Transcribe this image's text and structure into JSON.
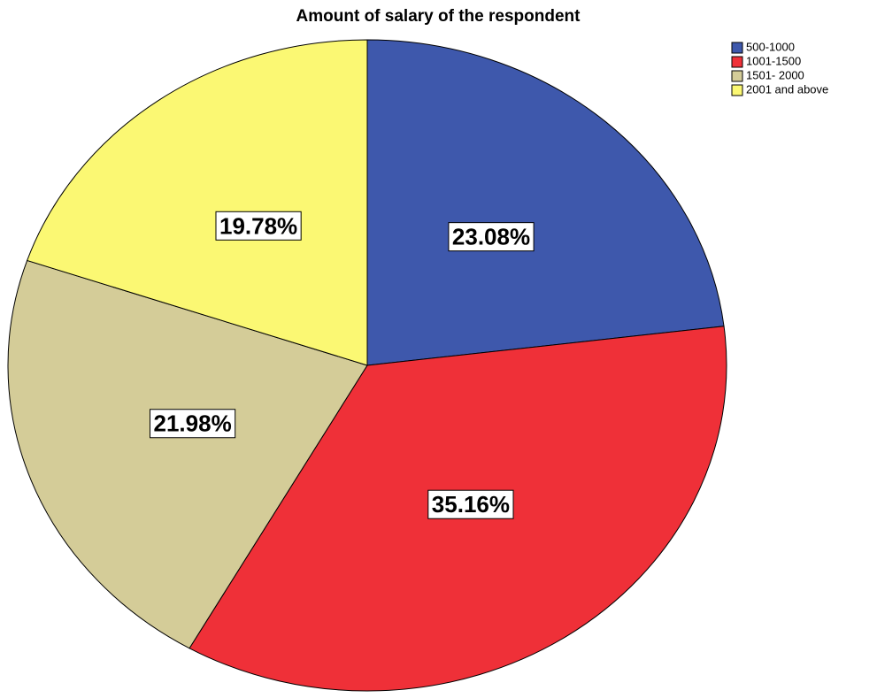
{
  "chart_data": {
    "type": "pie",
    "title": "Amount of salary of the respondent",
    "categories": [
      "500-1000",
      "1001-1500",
      "1501- 2000",
      "2001 and above"
    ],
    "values": [
      23.08,
      35.16,
      21.98,
      19.78
    ],
    "value_labels": [
      "23.08%",
      "35.16%",
      "21.98%",
      "19.78%"
    ],
    "colors": [
      "#3e58ac",
      "#ef3038",
      "#d4cc98",
      "#fbf873"
    ],
    "legend": "top-right"
  }
}
